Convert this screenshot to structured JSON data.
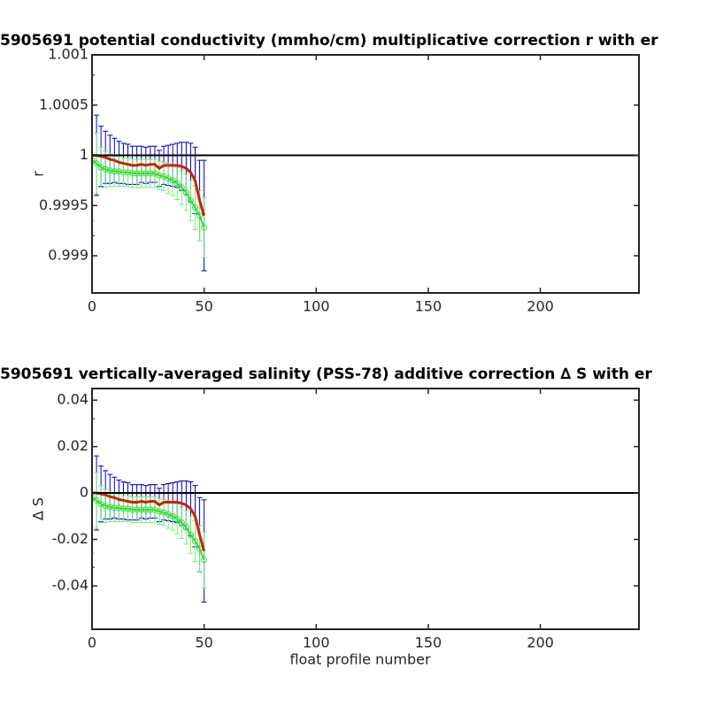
{
  "chart_data": [
    {
      "type": "errorbar",
      "title": "5905691 potential conductivity (mmho/cm) multiplicative correction r with er",
      "ylabel": "r",
      "x": [
        0,
        2,
        4,
        6,
        8,
        10,
        12,
        14,
        16,
        18,
        20,
        22,
        24,
        26,
        28,
        30,
        32,
        34,
        36,
        38,
        40,
        42,
        44,
        46,
        48,
        50
      ],
      "series": [
        {
          "color": "#cc2200",
          "error_color": "#0000cc",
          "values": [
            1.0,
            1.0,
            0.99999,
            0.99998,
            0.99996,
            0.99995,
            0.99993,
            0.99992,
            0.99991,
            0.9999,
            0.9999,
            0.99991,
            0.9999,
            0.99991,
            0.99991,
            0.99987,
            0.9999,
            0.9999,
            0.9999,
            0.9999,
            0.99989,
            0.99987,
            0.99983,
            0.99975,
            0.99955,
            0.9994
          ],
          "errors": [
            0.0008,
            0.0004,
            0.0003,
            0.00026,
            0.00024,
            0.00022,
            0.00021,
            0.0002,
            0.0002,
            0.00019,
            0.00019,
            0.00018,
            0.00018,
            0.00018,
            0.00018,
            0.00018,
            0.00019,
            0.0002,
            0.00021,
            0.00022,
            0.00024,
            0.00026,
            0.00029,
            0.00033,
            0.0004,
            0.00055
          ]
        },
        {
          "color": "#33dd33",
          "error_color": "#77ee77",
          "marker": "circle",
          "values": [
            0.99995,
            0.99992,
            0.99988,
            0.99986,
            0.99985,
            0.99984,
            0.99984,
            0.99983,
            0.99983,
            0.99982,
            0.99982,
            0.99982,
            0.99982,
            0.99982,
            0.99982,
            0.9998,
            0.99979,
            0.99977,
            0.99975,
            0.99972,
            0.99968,
            0.99963,
            0.99955,
            0.99948,
            0.9994,
            0.99928
          ],
          "errors": [
            0.0006,
            0.0003,
            0.0002,
            0.00018,
            0.00016,
            0.00015,
            0.00015,
            0.00014,
            0.00014,
            0.00014,
            0.00014,
            0.00014,
            0.00014,
            0.00014,
            0.00014,
            0.00014,
            0.00014,
            0.00015,
            0.00015,
            0.00016,
            0.00017,
            0.00018,
            0.0002,
            0.00022,
            0.00025,
            0.0003
          ]
        }
      ],
      "reference_line": 1,
      "xlim": [
        0,
        244
      ],
      "xticks": [
        0,
        50,
        100,
        150,
        200
      ],
      "ylim": [
        0.99863,
        1.001
      ],
      "yticks": [
        0.999,
        0.9995,
        1,
        1.0005,
        1.001
      ]
    },
    {
      "type": "errorbar",
      "title": "5905691 vertically-averaged salinity (PSS-78) additive correction ∆ S with er",
      "ylabel": "∆ S",
      "xlabel": "float profile number",
      "x": [
        0,
        2,
        4,
        6,
        8,
        10,
        12,
        14,
        16,
        18,
        20,
        22,
        24,
        26,
        28,
        30,
        32,
        34,
        36,
        38,
        40,
        42,
        44,
        46,
        48,
        50
      ],
      "series": [
        {
          "color": "#cc2200",
          "error_color": "#0000cc",
          "values": [
            0,
            0,
            -0.0004,
            -0.0008,
            -0.0016,
            -0.002,
            -0.0028,
            -0.0032,
            -0.0036,
            -0.004,
            -0.004,
            -0.0036,
            -0.004,
            -0.0036,
            -0.0036,
            -0.0052,
            -0.004,
            -0.004,
            -0.004,
            -0.004,
            -0.0044,
            -0.0052,
            -0.0068,
            -0.01,
            -0.018,
            -0.025
          ],
          "errors": [
            0.032,
            0.016,
            0.012,
            0.0104,
            0.0096,
            0.0088,
            0.0084,
            0.008,
            0.008,
            0.0076,
            0.0076,
            0.0072,
            0.0072,
            0.0072,
            0.0072,
            0.0072,
            0.0076,
            0.008,
            0.0084,
            0.0088,
            0.0096,
            0.0104,
            0.0116,
            0.0132,
            0.016,
            0.022
          ]
        },
        {
          "color": "#33dd33",
          "error_color": "#77ee77",
          "marker": "circle",
          "values": [
            -0.002,
            -0.0032,
            -0.0048,
            -0.0056,
            -0.006,
            -0.0064,
            -0.0064,
            -0.0068,
            -0.0068,
            -0.0072,
            -0.0072,
            -0.0072,
            -0.0072,
            -0.0072,
            -0.0072,
            -0.008,
            -0.0084,
            -0.0092,
            -0.01,
            -0.0112,
            -0.0128,
            -0.0148,
            -0.018,
            -0.0208,
            -0.024,
            -0.0288
          ],
          "errors": [
            0.024,
            0.012,
            0.008,
            0.0072,
            0.0064,
            0.006,
            0.006,
            0.0056,
            0.0056,
            0.0056,
            0.0056,
            0.0056,
            0.0056,
            0.0056,
            0.0056,
            0.0056,
            0.0056,
            0.006,
            0.006,
            0.0064,
            0.0068,
            0.0072,
            0.008,
            0.0088,
            0.01,
            0.012
          ]
        }
      ],
      "reference_line": 0,
      "xlim": [
        0,
        244
      ],
      "xticks": [
        0,
        50,
        100,
        150,
        200
      ],
      "ylim": [
        -0.0587,
        0.045
      ],
      "yticks": [
        -0.04,
        -0.02,
        0,
        0.02,
        0.04
      ]
    }
  ]
}
